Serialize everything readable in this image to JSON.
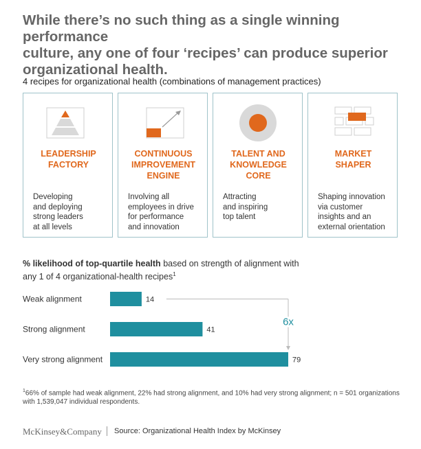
{
  "headline": {
    "line1": "While there’s no such thing as a single winning performance",
    "line2": "culture, any one of four ‘recipes’ can produce superior",
    "line3": "organizational health."
  },
  "subhead": "4 recipes for organizational health (combinations of management practices)",
  "recipes": [
    {
      "icon": "pyramid-icon",
      "title_lines": [
        "LEADERSHIP",
        "FACTORY"
      ],
      "desc_lines": [
        "Developing",
        "and deploying",
        "strong leaders",
        "at all levels"
      ]
    },
    {
      "icon": "growth-arrow-icon",
      "title_lines": [
        "CONTINUOUS",
        "IMPROVEMENT",
        "ENGINE"
      ],
      "desc_lines": [
        "Involving all",
        "employees in drive",
        "for performance",
        "and innovation"
      ]
    },
    {
      "icon": "core-circle-icon",
      "title_lines": [
        "TALENT AND",
        "KNOWLEDGE",
        "CORE"
      ],
      "desc_lines": [
        "Attracting",
        "and inspiring",
        "top talent"
      ]
    },
    {
      "icon": "market-grid-icon",
      "title_lines": [
        "MARKET",
        "SHAPER"
      ],
      "desc_lines": [
        "Shaping innovation",
        "via customer",
        "insights and an",
        "external orientation"
      ]
    }
  ],
  "chart_title": {
    "bold": "% likelihood of top-quartile health",
    "rest": "based on strength of alignment with",
    "line2": "any 1 of 4 organizational-health recipes",
    "footnote_marker": "1"
  },
  "chart_data": {
    "type": "bar",
    "orientation": "horizontal",
    "categories": [
      "Weak alignment",
      "Strong alignment",
      "Very strong alignment"
    ],
    "values": [
      14,
      41,
      79
    ],
    "xlim": [
      0,
      79
    ],
    "annotation": "6x",
    "bar_color": "#1f8f9f"
  },
  "footnote": {
    "marker": "1",
    "text": "66% of sample had weak alignment, 22% had strong alignment, and 10% had very strong alignment; n = 501 organizations with 1,539,047 individual respondents."
  },
  "footer": {
    "logo": "McKinsey&Company",
    "source": "Source: Organizational Health Index by McKinsey"
  },
  "colors": {
    "accent_orange": "#e0681d",
    "teal": "#1f8f9f",
    "card_border": "#9fc3c9"
  }
}
